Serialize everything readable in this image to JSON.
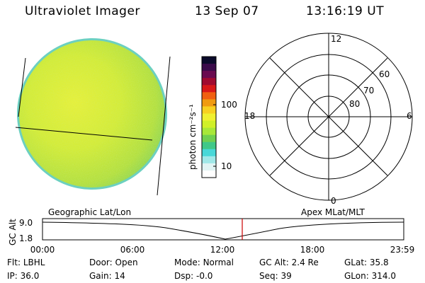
{
  "header": {
    "instrument": "Ultraviolet Imager",
    "date": "13 Sep 07",
    "time": "13:16:19 UT"
  },
  "colorbar": {
    "unit_label": "photon cm⁻²s⁻¹",
    "ticks": [
      {
        "label": "100",
        "value": 100
      },
      {
        "label": "10",
        "value": 10
      }
    ],
    "colors_top_to_bottom": [
      "#0a0a2a",
      "#3a0a4a",
      "#6a0a50",
      "#a00a30",
      "#d81818",
      "#f06010",
      "#f09a10",
      "#f8d020",
      "#f0f030",
      "#d0f028",
      "#a8e838",
      "#70d050",
      "#40c888",
      "#48d8d8",
      "#a0e8e8",
      "#e0f4f4",
      "#ffffff"
    ]
  },
  "polar_plot": {
    "mlt_labels": {
      "top": "12",
      "left": "18",
      "right": "6",
      "bottom": "0"
    },
    "lat_labels": [
      {
        "label": "60"
      },
      {
        "label": "70"
      },
      {
        "label": "80"
      }
    ]
  },
  "timeline": {
    "left_caption": "Geographic Lat/Lon",
    "right_caption": "Apex MLat/MLT",
    "axis_title": "GC Alt",
    "y_ticks": [
      "9.0",
      "1.8"
    ],
    "x_ticks": [
      "00:00",
      "06:00",
      "12:00",
      "18:00",
      "23:59"
    ],
    "marker_time": "13:16",
    "marker_color": "#cc0000"
  },
  "info_rows": [
    [
      {
        "key": "Flt:",
        "value": "LBHL"
      },
      {
        "key": "Door:",
        "value": "Open"
      },
      {
        "key": "Mode:",
        "value": "Normal"
      },
      {
        "key": "GC Alt:",
        "value": "2.4 Re"
      },
      {
        "key": "GLat:",
        "value": "35.8"
      }
    ],
    [
      {
        "key": "IP:",
        "value": "36.0"
      },
      {
        "key": "Gain:",
        "value": "14"
      },
      {
        "key": "Dsp:",
        "value": "-0.0"
      },
      {
        "key": "Seq:",
        "value": "39"
      },
      {
        "key": "GLon:",
        "value": "314.0"
      }
    ]
  ]
}
